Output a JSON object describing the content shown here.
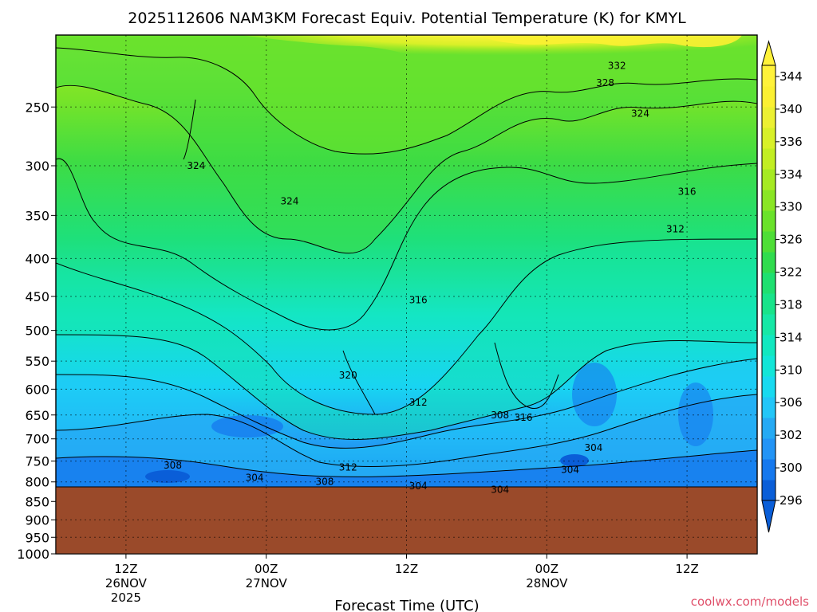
{
  "title": "2025112606 NAM3KM Forecast Equiv. Potential Temperature (K) for KMYL",
  "xlabel": "Forecast Time (UTC)",
  "credit": "coolwx.com/models",
  "chart_data": {
    "type": "heatmap",
    "title": "2025112606 NAM3KM Forecast Equiv. Potential Temperature (K) for KMYL",
    "xlabel": "Forecast Time (UTC)",
    "ylabel": "",
    "y_scale": "log",
    "y_inverted": true,
    "ylim": [
      1000,
      200
    ],
    "y_ticks": [
      250,
      300,
      350,
      400,
      450,
      500,
      550,
      600,
      650,
      700,
      750,
      800,
      850,
      900,
      950,
      1000
    ],
    "xlim": [
      "2025-11-26T06Z",
      "2025-11-28T18Z"
    ],
    "x_ticks": [
      {
        "time": "2025-11-26T12Z",
        "label": "12Z",
        "day": "26NOV",
        "year": "2025"
      },
      {
        "time": "2025-11-27T00Z",
        "label": "00Z",
        "day": "27NOV",
        "year": ""
      },
      {
        "time": "2025-11-27T12Z",
        "label": "12Z",
        "day": "",
        "year": ""
      },
      {
        "time": "2025-11-28T00Z",
        "label": "00Z",
        "day": "28NOV",
        "year": ""
      },
      {
        "time": "2025-11-28T12Z",
        "label": "12Z",
        "day": "",
        "year": ""
      }
    ],
    "grid": true,
    "below_ground_pressure": 855,
    "colorbar": {
      "unit": "K",
      "levels": [
        296,
        298,
        300,
        302,
        304,
        306,
        308,
        310,
        312,
        314,
        316,
        318,
        320,
        322,
        324,
        326,
        328,
        330,
        332,
        334,
        336,
        338,
        340,
        342,
        344
      ],
      "labels": [
        "296",
        "300",
        "302",
        "306",
        "310",
        "314",
        "318",
        "322",
        "326",
        "330",
        "334",
        "336",
        "340",
        "344"
      ],
      "colors": [
        "#0a5ed8",
        "#1578ee",
        "#2294f6",
        "#25aaf4",
        "#22c6f8",
        "#18daf0",
        "#12e6d8",
        "#12e8c0",
        "#16e8a6",
        "#18e48a",
        "#1ee070",
        "#30dc4e",
        "#4ede36",
        "#6ae22a",
        "#8ae624",
        "#a6ea22",
        "#c2ee22",
        "#d8f028",
        "#ecf032",
        "#fbf032",
        "#fff23a"
      ]
    },
    "contour_labels": [
      {
        "value": "332",
        "time": "2025-11-28T06Z",
        "p": 220
      },
      {
        "value": "328",
        "time": "2025-11-28T05Z",
        "p": 232
      },
      {
        "value": "324",
        "time": "2025-11-28T08Z",
        "p": 255
      },
      {
        "value": "324",
        "time": "2025-11-26T18Z",
        "p": 300
      },
      {
        "value": "324",
        "time": "2025-11-27T02Z",
        "p": 335
      },
      {
        "value": "316",
        "time": "2025-11-28T12Z",
        "p": 325
      },
      {
        "value": "312",
        "time": "2025-11-28T11Z",
        "p": 365
      },
      {
        "value": "316",
        "time": "2025-11-27T13Z",
        "p": 455
      },
      {
        "value": "320",
        "time": "2025-11-27T07Z",
        "p": 575
      },
      {
        "value": "312",
        "time": "2025-11-27T13Z",
        "p": 625
      },
      {
        "value": "308",
        "time": "2025-11-27T20Z",
        "p": 650
      },
      {
        "value": "316",
        "time": "2025-11-27T22Z",
        "p": 655
      },
      {
        "value": "308",
        "time": "2025-11-26T16Z",
        "p": 760
      },
      {
        "value": "304",
        "time": "2025-11-26T23Z",
        "p": 790
      },
      {
        "value": "312",
        "time": "2025-11-27T07Z",
        "p": 765
      },
      {
        "value": "308",
        "time": "2025-11-27T05Z",
        "p": 800
      },
      {
        "value": "304",
        "time": "2025-11-27T13Z",
        "p": 810
      },
      {
        "value": "304",
        "time": "2025-11-28T02Z",
        "p": 770
      },
      {
        "value": "304",
        "time": "2025-11-28T04Z",
        "p": 720
      },
      {
        "value": "304",
        "time": "2025-11-27T20Z",
        "p": 820
      }
    ]
  }
}
